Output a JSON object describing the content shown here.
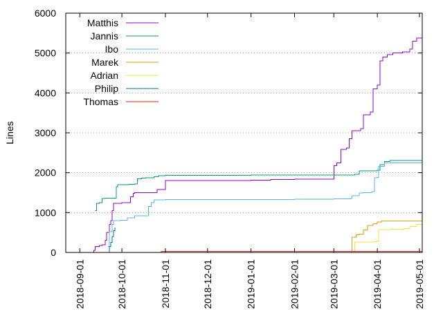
{
  "chart_data": {
    "type": "line",
    "ylabel": "Lines",
    "xlabel": "",
    "ylim": [
      0,
      6000
    ],
    "xlim": [
      "2018-08-22",
      "2019-05-03"
    ],
    "yticks": [
      0,
      1000,
      2000,
      3000,
      4000,
      5000,
      6000
    ],
    "xticks": [
      "2018-09-01",
      "2018-10-01",
      "2018-11-01",
      "2018-12-01",
      "2019-01-01",
      "2019-02-01",
      "2019-03-01",
      "2019-04-01",
      "2019-05-01"
    ],
    "grid": "horizontal",
    "legend_position": "top-left",
    "series": [
      {
        "name": "Matthis",
        "color": "#9400d3",
        "points": [
          [
            "2018-09-10",
            0
          ],
          [
            "2018-09-11",
            50
          ],
          [
            "2018-09-12",
            150
          ],
          [
            "2018-09-15",
            170
          ],
          [
            "2018-09-17",
            190
          ],
          [
            "2018-09-19",
            300
          ],
          [
            "2018-09-20",
            500
          ],
          [
            "2018-09-22",
            700
          ],
          [
            "2018-09-23",
            800
          ],
          [
            "2018-09-24",
            1050
          ],
          [
            "2018-09-25",
            1230
          ],
          [
            "2018-10-01",
            1250
          ],
          [
            "2018-10-07",
            1400
          ],
          [
            "2018-10-09",
            1480
          ],
          [
            "2018-10-10",
            1500
          ],
          [
            "2018-10-26",
            1580
          ],
          [
            "2018-11-01",
            1800
          ],
          [
            "2018-12-01",
            1805
          ],
          [
            "2019-01-01",
            1815
          ],
          [
            "2019-01-15",
            1830
          ],
          [
            "2019-02-01",
            1840
          ],
          [
            "2019-02-27",
            1840
          ],
          [
            "2019-03-01",
            2180
          ],
          [
            "2019-03-03",
            2250
          ],
          [
            "2019-03-06",
            2580
          ],
          [
            "2019-03-10",
            2620
          ],
          [
            "2019-03-12",
            2850
          ],
          [
            "2019-03-14",
            3050
          ],
          [
            "2019-03-20",
            3100
          ],
          [
            "2019-03-22",
            3450
          ],
          [
            "2019-03-27",
            3520
          ],
          [
            "2019-03-29",
            4100
          ],
          [
            "2019-04-01",
            4200
          ],
          [
            "2019-04-03",
            4800
          ],
          [
            "2019-04-05",
            4900
          ],
          [
            "2019-04-08",
            4960
          ],
          [
            "2019-04-12",
            5000
          ],
          [
            "2019-04-19",
            5030
          ],
          [
            "2019-04-24",
            5100
          ],
          [
            "2019-04-26",
            5300
          ],
          [
            "2019-04-29",
            5380
          ],
          [
            "2019-05-03",
            5380
          ]
        ]
      },
      {
        "name": "Jannis",
        "color": "#009e73",
        "points": [
          [
            "2018-09-12",
            1050
          ],
          [
            "2018-09-13",
            1230
          ],
          [
            "2018-09-15",
            1250
          ],
          [
            "2018-09-17",
            1350
          ],
          [
            "2018-09-19",
            1360
          ],
          [
            "2018-09-25",
            1360
          ],
          [
            "2018-09-27",
            1650
          ],
          [
            "2018-09-28",
            1700
          ],
          [
            "2018-10-06",
            1710
          ],
          [
            "2018-10-10",
            1720
          ],
          [
            "2018-10-12",
            1850
          ],
          [
            "2018-10-15",
            1860
          ],
          [
            "2018-10-18",
            1870
          ],
          [
            "2018-10-24",
            1900
          ],
          [
            "2018-10-27",
            1925
          ],
          [
            "2018-11-01",
            1930
          ],
          [
            "2018-12-01",
            1935
          ],
          [
            "2019-01-01",
            1940
          ],
          [
            "2019-02-01",
            1945
          ],
          [
            "2019-03-01",
            1945
          ],
          [
            "2019-03-16",
            1960
          ],
          [
            "2019-03-19",
            2050
          ],
          [
            "2019-04-01",
            2060
          ],
          [
            "2019-04-03",
            2200
          ],
          [
            "2019-04-06",
            2280
          ],
          [
            "2019-04-10",
            2310
          ],
          [
            "2019-05-03",
            2320
          ]
        ]
      },
      {
        "name": "Ibo",
        "color": "#56b4e9",
        "points": [
          [
            "2018-09-21",
            150
          ],
          [
            "2018-09-22",
            520
          ],
          [
            "2018-09-24",
            700
          ],
          [
            "2018-09-25",
            800
          ],
          [
            "2018-09-30",
            810
          ],
          [
            "2018-10-05",
            870
          ],
          [
            "2018-10-10",
            920
          ],
          [
            "2018-10-20",
            1150
          ],
          [
            "2018-10-22",
            1250
          ],
          [
            "2018-10-24",
            1320
          ],
          [
            "2018-11-01",
            1325
          ],
          [
            "2018-12-01",
            1330
          ],
          [
            "2019-01-01",
            1330
          ],
          [
            "2019-02-01",
            1335
          ],
          [
            "2019-03-01",
            1340
          ],
          [
            "2019-03-13",
            1350
          ],
          [
            "2019-03-14",
            1420
          ],
          [
            "2019-03-19",
            1490
          ],
          [
            "2019-03-22",
            1500
          ],
          [
            "2019-03-28",
            1530
          ],
          [
            "2019-03-30",
            1870
          ],
          [
            "2019-04-01",
            1880
          ],
          [
            "2019-04-02",
            2160
          ],
          [
            "2019-04-06",
            2250
          ],
          [
            "2019-05-03",
            2250
          ]
        ]
      },
      {
        "name": "Marek",
        "color": "#e69f00",
        "points": [
          [
            "2019-03-13",
            0
          ],
          [
            "2019-03-14",
            380
          ],
          [
            "2019-03-17",
            440
          ],
          [
            "2019-03-19",
            460
          ],
          [
            "2019-03-22",
            560
          ],
          [
            "2019-03-25",
            680
          ],
          [
            "2019-03-29",
            720
          ],
          [
            "2019-04-01",
            760
          ],
          [
            "2019-04-04",
            790
          ],
          [
            "2019-05-03",
            795
          ]
        ]
      },
      {
        "name": "Adrian",
        "color": "#f0e442",
        "points": [
          [
            "2019-03-15",
            0
          ],
          [
            "2019-03-16",
            260
          ],
          [
            "2019-03-30",
            270
          ],
          [
            "2019-04-01",
            290
          ],
          [
            "2019-04-02",
            570
          ],
          [
            "2019-04-10",
            580
          ],
          [
            "2019-04-20",
            600
          ],
          [
            "2019-04-24",
            650
          ],
          [
            "2019-04-29",
            700
          ],
          [
            "2019-05-03",
            720
          ]
        ]
      },
      {
        "name": "Philip",
        "color": "#0072b2",
        "points": [
          [
            "2018-09-21",
            0
          ],
          [
            "2018-09-22",
            150
          ],
          [
            "2018-09-23",
            250
          ],
          [
            "2018-09-24",
            400
          ],
          [
            "2018-09-25",
            550
          ],
          [
            "2018-09-26",
            620
          ]
        ]
      },
      {
        "name": "Thomas",
        "color": "#e51e10",
        "points": [
          [
            "2018-10-28",
            0
          ],
          [
            "2018-10-29",
            30
          ],
          [
            "2019-05-03",
            30
          ]
        ]
      }
    ]
  }
}
